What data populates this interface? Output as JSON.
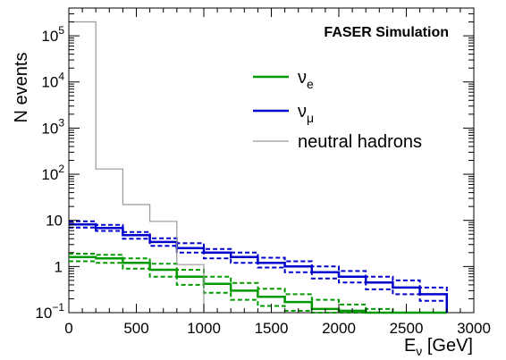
{
  "chart_data": {
    "type": "line",
    "plot_style": "step-histogram",
    "annotation": "FASER Simulation",
    "xlabel": {
      "main": "E",
      "sub": "ν",
      "rest": " [GeV]"
    },
    "ylabel": "N events",
    "xlim": [
      0,
      3000
    ],
    "ylim": [
      0.1,
      400000
    ],
    "yscale": "log",
    "grid": false,
    "legend_position": "top-right",
    "x_ticks": [
      {
        "value": 0,
        "label": "0"
      },
      {
        "value": 500,
        "label": "500"
      },
      {
        "value": 1000,
        "label": "1000"
      },
      {
        "value": 1500,
        "label": "1500"
      },
      {
        "value": 2000,
        "label": "2000"
      },
      {
        "value": 2500,
        "label": "2500"
      },
      {
        "value": 3000,
        "label": "3000"
      }
    ],
    "y_ticks": [
      {
        "value": 0.1,
        "base": "10",
        "exp": "−1"
      },
      {
        "value": 1,
        "base": "1",
        "exp": ""
      },
      {
        "value": 10,
        "base": "10",
        "exp": ""
      },
      {
        "value": 100,
        "base": "10",
        "exp": "2"
      },
      {
        "value": 1000,
        "base": "10",
        "exp": "3"
      },
      {
        "value": 10000,
        "base": "10",
        "exp": "4"
      },
      {
        "value": 100000,
        "base": "10",
        "exp": "5"
      }
    ],
    "bin_edges": [
      0,
      200,
      400,
      600,
      800,
      1000,
      1200,
      1400,
      1600,
      1800,
      2000,
      2200,
      2400,
      2600,
      2800,
      3000
    ],
    "series": [
      {
        "name": {
          "main": "ν",
          "sub": "e"
        },
        "color": "#009900",
        "values": [
          1.6,
          1.5,
          1.2,
          0.85,
          0.6,
          0.42,
          0.3,
          0.22,
          0.17,
          0.12,
          0.11,
          0.1,
          0.1,
          0.1,
          null
        ],
        "upper": [
          1.9,
          1.8,
          1.5,
          1.15,
          0.85,
          0.6,
          0.44,
          0.33,
          0.25,
          0.19,
          0.15,
          0.12,
          0.1,
          0.1,
          null
        ],
        "lower": [
          1.3,
          1.2,
          0.9,
          0.6,
          0.4,
          0.27,
          0.19,
          0.14,
          0.11,
          0.1,
          0.1,
          0.1,
          0.1,
          null,
          null
        ]
      },
      {
        "name": {
          "main": "ν",
          "sub": "μ"
        },
        "color": "#0000cc",
        "values": [
          8.2,
          6.8,
          4.8,
          3.4,
          2.5,
          2.0,
          1.6,
          1.2,
          1.0,
          0.75,
          0.6,
          0.45,
          0.35,
          0.25,
          null
        ],
        "upper": [
          9.5,
          8.0,
          5.6,
          4.1,
          3.2,
          2.4,
          2.0,
          1.55,
          1.3,
          1.0,
          0.8,
          0.6,
          0.5,
          0.35,
          null
        ],
        "lower": [
          7.0,
          5.9,
          4.0,
          2.8,
          2.0,
          1.5,
          1.2,
          0.95,
          0.75,
          0.55,
          0.45,
          0.32,
          0.25,
          0.18,
          null
        ]
      },
      {
        "name": {
          "main": "neutral hadrons",
          "sub": ""
        },
        "color": "#999999",
        "values": [
          200000,
          130,
          22,
          9.5,
          1.1,
          null,
          null,
          null,
          null,
          null,
          null,
          null,
          null,
          null,
          null
        ]
      }
    ]
  }
}
